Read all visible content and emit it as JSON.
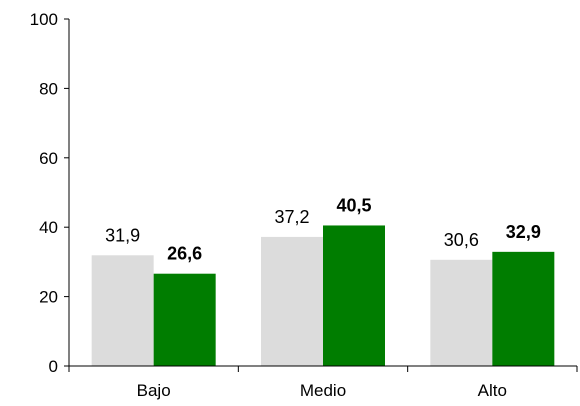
{
  "chart_data": {
    "type": "bar",
    "categories": [
      "Bajo",
      "Medio",
      "Alto"
    ],
    "series": [
      {
        "values": [
          31.9,
          37.2,
          30.6
        ],
        "labels": [
          "31,9",
          "37,2",
          "30,6"
        ],
        "color": "#dcdcdc",
        "label_bold": false
      },
      {
        "values": [
          26.6,
          40.5,
          32.9
        ],
        "labels": [
          "26,6",
          "40,5",
          "32,9"
        ],
        "color": "#007d00",
        "label_bold": true
      }
    ],
    "y_ticks": [
      "0",
      "20",
      "40",
      "60",
      "80",
      "100"
    ],
    "ylim": [
      0,
      100
    ],
    "grid": false,
    "legend": false
  }
}
